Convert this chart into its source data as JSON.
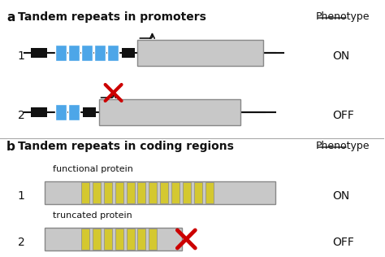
{
  "bg_color": "#ffffff",
  "title_a": "Tandem repeats in promoters",
  "title_b": "Tandem repeats in coding regions",
  "label_a": "a",
  "label_b": "b",
  "phenotype_label": "Phenotype",
  "on_label": "ON",
  "off_label": "OFF",
  "blue_color": "#4da6e8",
  "blue_dark": "#2288cc",
  "gray_color": "#c8c8c8",
  "gray_dark": "#a0a0a0",
  "black_color": "#111111",
  "yellow_color": "#d4c830",
  "red_color": "#cc0000",
  "line_color": "#111111"
}
